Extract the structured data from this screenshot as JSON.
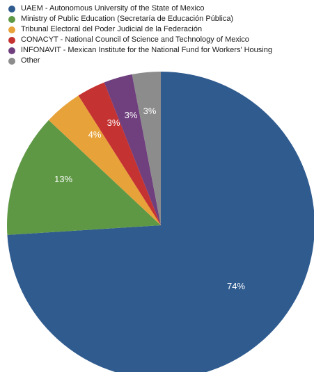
{
  "chart_data": {
    "type": "pie",
    "title": "",
    "legend_position": "top-left",
    "slices": [
      {
        "name": "UAEM - Autonomous University of the State of Mexico",
        "value": 74,
        "label": "74%",
        "color": "#2f5b8f"
      },
      {
        "name": "Ministry of Public Education (Secretaría de Educación Pública)",
        "value": 13,
        "label": "13%",
        "color": "#5e9845"
      },
      {
        "name": "Tribunal Electoral del Poder Judicial de la Federación",
        "value": 4,
        "label": "4%",
        "color": "#e8a23a"
      },
      {
        "name": "CONACYT - National Council of Science and Technology of Mexico",
        "value": 3,
        "label": "3%",
        "color": "#c53232"
      },
      {
        "name": "INFONAVIT - Mexican Institute for the National Fund for Workers' Housing",
        "value": 3,
        "label": "3%",
        "color": "#6f3f7e"
      },
      {
        "name": "Other",
        "value": 3,
        "label": "3%",
        "color": "#8c8c8c"
      }
    ]
  }
}
